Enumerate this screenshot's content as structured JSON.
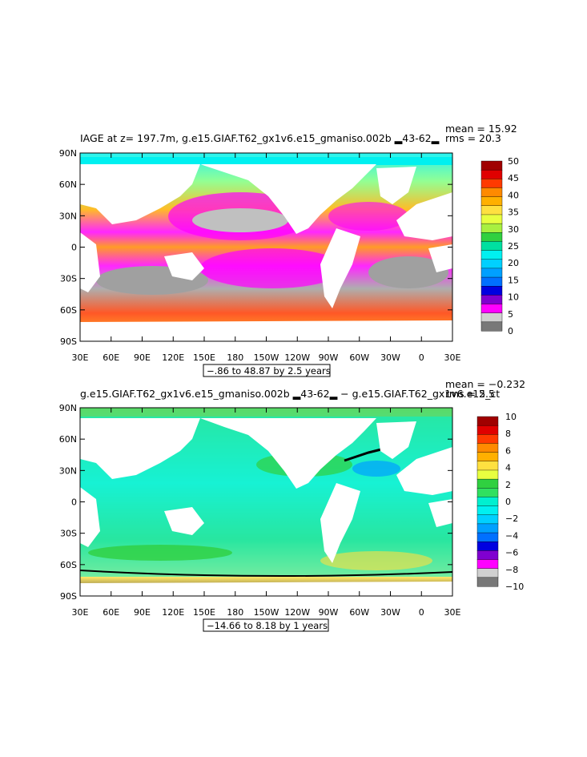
{
  "chart_data": [
    {
      "type": "heatmap",
      "title": "IAGE at z= 197.7m, g.e15.GIAF.T62_gx1v6.e15_gmaniso.002b ▂43-62▂",
      "stats": {
        "mean": "mean = 15.92",
        "rms": "rms = 20.3"
      },
      "range_label": "−.86 to 48.87 by 2.5 years",
      "x_ticks": [
        "30E",
        "60E",
        "90E",
        "120E",
        "150E",
        "180",
        "150W",
        "120W",
        "90W",
        "60W",
        "30W",
        "0",
        "30E"
      ],
      "y_ticks": [
        "90N",
        "60N",
        "30N",
        "0",
        "30S",
        "60S",
        "90S"
      ],
      "colorbar": {
        "labels": [
          "50",
          "45",
          "40",
          "35",
          "30",
          "25",
          "20",
          "15",
          "10",
          "5",
          "0"
        ],
        "colors": [
          "#a00000",
          "#e00000",
          "#ff3a00",
          "#ff8a00",
          "#ffb000",
          "#ffe040",
          "#e8ff40",
          "#a8f040",
          "#30d040",
          "#00e0a0",
          "#00f0f0",
          "#00d0ff",
          "#00a0ff",
          "#0070ff",
          "#0000e0",
          "#8000d0",
          "#ff00ff",
          "#d0d0d0",
          "#787878"
        ]
      }
    },
    {
      "type": "heatmap",
      "title": "g.e15.GIAF.T62_gx1v6.e15_gmaniso.002b ▂43-62▂ − g.e15.GIAF.T62_gx1v6.e15_ct",
      "stats": {
        "mean": "mean = −0.232",
        "rms": "rms = 2.5"
      },
      "range_label": "−14.66 to 8.18 by 1 years",
      "x_ticks": [
        "30E",
        "60E",
        "90E",
        "120E",
        "150E",
        "180",
        "150W",
        "120W",
        "90W",
        "60W",
        "30W",
        "0",
        "30E"
      ],
      "y_ticks": [
        "90N",
        "60N",
        "30N",
        "0",
        "30S",
        "60S",
        "90S"
      ],
      "colorbar": {
        "labels": [
          "10",
          "8",
          "6",
          "4",
          "2",
          "0",
          "−2",
          "−4",
          "−6",
          "−8",
          "−10"
        ],
        "colors": [
          "#a00000",
          "#e00000",
          "#ff3a00",
          "#ff8a00",
          "#ffb000",
          "#ffe040",
          "#e8ff40",
          "#30d040",
          "#30e060",
          "#00f0d0",
          "#00f0f0",
          "#00d0ff",
          "#00a0ff",
          "#0070ff",
          "#0000e0",
          "#8000d0",
          "#ff00ff",
          "#d0d0d0",
          "#787878"
        ]
      }
    }
  ]
}
